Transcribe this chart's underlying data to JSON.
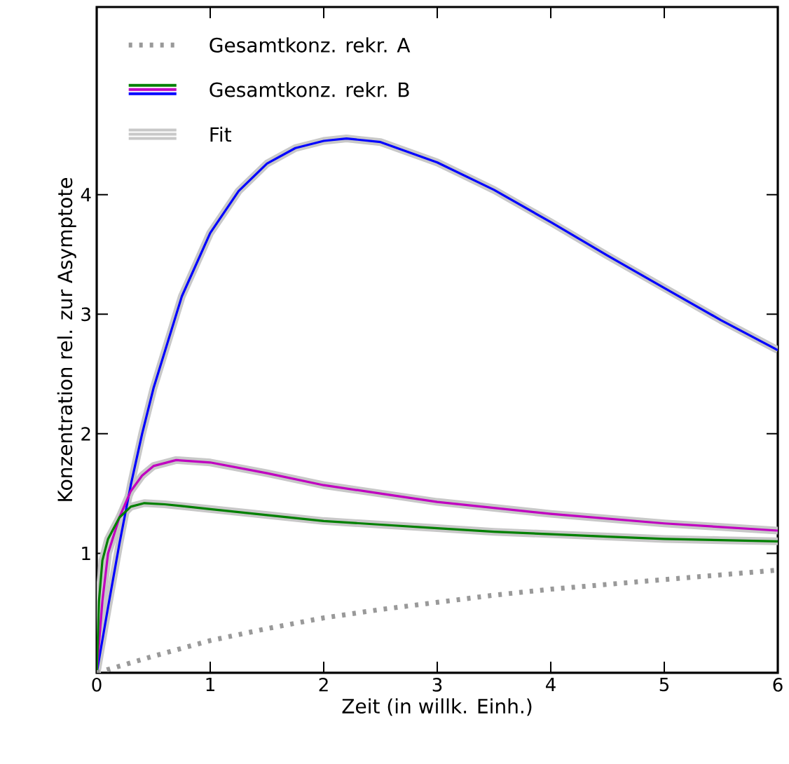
{
  "chart_data": {
    "type": "line",
    "xlabel": "Zeit (in willk. Einh.)",
    "ylabel": "Konzentration rel. zur Asymptote",
    "xlim": [
      0,
      6
    ],
    "ylim": [
      0,
      5.57
    ],
    "xticks": [
      0,
      1,
      2,
      3,
      4,
      5,
      6
    ],
    "yticks": [
      1,
      2,
      3,
      4
    ],
    "grid": false,
    "legend": "top left",
    "series": [
      {
        "name": "Gesamtkonz. rekr. A",
        "color": "#999999",
        "line_style": "dotted",
        "x": [
          0,
          0.5,
          1,
          1.5,
          2,
          2.5,
          3,
          3.5,
          4,
          4.5,
          5,
          5.5,
          6
        ],
        "values": [
          0,
          0.14,
          0.27,
          0.37,
          0.46,
          0.53,
          0.59,
          0.65,
          0.7,
          0.74,
          0.78,
          0.82,
          0.86
        ]
      },
      {
        "name": "Gesamtkonz. rekr. B",
        "color": "#008000",
        "line_style": "solid",
        "x": [
          0,
          0.02,
          0.05,
          0.1,
          0.2,
          0.3,
          0.42,
          0.6,
          1,
          1.5,
          2,
          2.5,
          3,
          3.5,
          4,
          4.5,
          5,
          5.5,
          6
        ],
        "values": [
          0,
          0.6,
          0.94,
          1.12,
          1.3,
          1.39,
          1.42,
          1.41,
          1.37,
          1.32,
          1.27,
          1.24,
          1.21,
          1.18,
          1.16,
          1.14,
          1.12,
          1.11,
          1.1
        ]
      },
      {
        "color": "#c000c0",
        "line_style": "solid",
        "x": [
          0,
          0.05,
          0.1,
          0.2,
          0.3,
          0.4,
          0.5,
          0.7,
          1,
          1.5,
          2,
          2.5,
          3,
          3.5,
          4,
          4.5,
          5,
          5.5,
          6
        ],
        "values": [
          0,
          0.6,
          1.0,
          1.3,
          1.52,
          1.65,
          1.73,
          1.78,
          1.76,
          1.67,
          1.57,
          1.5,
          1.43,
          1.38,
          1.33,
          1.29,
          1.25,
          1.22,
          1.19
        ]
      },
      {
        "color": "#0000ff",
        "line_style": "solid",
        "x": [
          0,
          0.1,
          0.2,
          0.3,
          0.4,
          0.5,
          0.75,
          1,
          1.25,
          1.5,
          1.75,
          2,
          2.2,
          2.5,
          3,
          3.5,
          4,
          4.5,
          5,
          5.5,
          6
        ],
        "values": [
          0,
          0.55,
          1.08,
          1.57,
          2.0,
          2.38,
          3.15,
          3.68,
          4.03,
          4.26,
          4.39,
          4.45,
          4.47,
          4.44,
          4.27,
          4.04,
          3.77,
          3.49,
          3.22,
          2.95,
          2.7
        ]
      },
      {
        "name": "Fit",
        "color": "#c8c8c8",
        "line_style": "solid",
        "x": [
          0,
          0.02,
          0.05,
          0.1,
          0.2,
          0.3,
          0.42,
          0.6,
          1,
          1.5,
          2,
          2.5,
          3,
          3.5,
          4,
          4.5,
          5,
          5.5,
          6
        ],
        "values": [
          0,
          0.6,
          0.94,
          1.12,
          1.3,
          1.39,
          1.42,
          1.41,
          1.37,
          1.32,
          1.27,
          1.24,
          1.21,
          1.18,
          1.16,
          1.14,
          1.12,
          1.11,
          1.1
        ]
      },
      {
        "color": "#c8c8c8",
        "line_style": "solid",
        "x": [
          0,
          0.05,
          0.1,
          0.2,
          0.3,
          0.4,
          0.5,
          0.7,
          1,
          1.5,
          2,
          2.5,
          3,
          3.5,
          4,
          4.5,
          5,
          5.5,
          6
        ],
        "values": [
          0,
          0.6,
          1.0,
          1.3,
          1.52,
          1.65,
          1.73,
          1.78,
          1.76,
          1.67,
          1.57,
          1.5,
          1.43,
          1.38,
          1.33,
          1.29,
          1.25,
          1.22,
          1.19
        ]
      },
      {
        "color": "#c8c8c8",
        "line_style": "solid",
        "x": [
          0,
          0.1,
          0.2,
          0.3,
          0.4,
          0.5,
          0.75,
          1,
          1.25,
          1.5,
          1.75,
          2,
          2.2,
          2.5,
          3,
          3.5,
          4,
          4.5,
          5,
          5.5,
          6
        ],
        "values": [
          0,
          0.55,
          1.08,
          1.57,
          2.0,
          2.38,
          3.15,
          3.68,
          4.03,
          4.26,
          4.39,
          4.45,
          4.47,
          4.44,
          4.27,
          4.04,
          3.77,
          3.49,
          3.22,
          2.95,
          2.7
        ]
      }
    ]
  }
}
